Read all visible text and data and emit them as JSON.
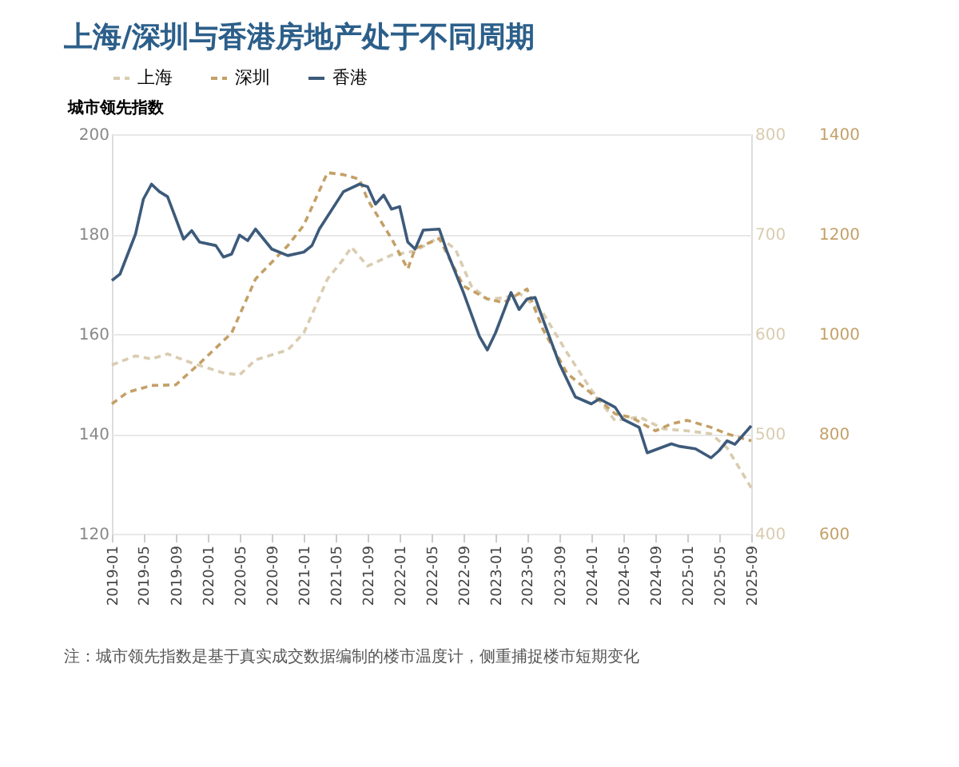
{
  "chart_data": {
    "type": "line",
    "title": "上海/深圳与香港房地产处于不同周期",
    "ylabel": "城市领先指数",
    "annotations": [
      "注：城市领先指数是基于真实成交数据编制的楼市温度计，侧重捕捉楼市短期变化"
    ],
    "xlim": [
      "2019-01",
      "2025-09"
    ],
    "xticks": [
      "2019-01",
      "2019-05",
      "2019-09",
      "2020-01",
      "2020-05",
      "2020-09",
      "2021-01",
      "2021-05",
      "2021-09",
      "2022-01",
      "2022-05",
      "2022-09",
      "2023-01",
      "2023-05",
      "2023-09",
      "2024-01",
      "2024-05",
      "2024-09",
      "2025-01",
      "2025-05",
      "2025-09"
    ],
    "ylim": [
      120,
      200
    ],
    "yticks": [
      120,
      140,
      160,
      180,
      200
    ],
    "y2lim": [
      400,
      800
    ],
    "y2ticks": [
      400,
      500,
      600,
      700,
      800
    ],
    "y3lim": [
      600,
      1400
    ],
    "y3ticks": [
      600,
      800,
      1000,
      1200,
      1400
    ],
    "grid": "y",
    "legend": "top",
    "marker": "none",
    "series": [
      {
        "name": "上海",
        "color": "#d9ccb0",
        "axis": "y2",
        "line_style": "dashed",
        "x": [
          "2019-01",
          "2019-04",
          "2019-06",
          "2019-08",
          "2019-11",
          "2020-03",
          "2020-05",
          "2020-07",
          "2020-11",
          "2021-01",
          "2021-04",
          "2021-06",
          "2021-07",
          "2021-09",
          "2021-12",
          "2022-03",
          "2022-06",
          "2022-08",
          "2022-10",
          "2022-12",
          "2023-02",
          "2023-04",
          "2023-07",
          "2023-10",
          "2024-01",
          "2024-04",
          "2024-07",
          "2024-10",
          "2025-01",
          "2025-04",
          "2025-06",
          "2025-09"
        ],
        "values": [
          569,
          578,
          575,
          580,
          571,
          561,
          559,
          574,
          584,
          601,
          655,
          675,
          687,
          668,
          679,
          683,
          697,
          685,
          648,
          635,
          636,
          641,
          621,
          581,
          544,
          513,
          517,
          505,
          503,
          500,
          486,
          446
        ]
      },
      {
        "name": "深圳",
        "color": "#c4a067",
        "axis": "y3",
        "line_style": "dashed",
        "x": [
          "2019-01",
          "2019-03",
          "2019-06",
          "2019-09",
          "2019-12",
          "2020-04",
          "2020-07",
          "2020-11",
          "2021-01",
          "2021-04",
          "2021-06",
          "2021-08",
          "2021-09",
          "2021-12",
          "2022-02",
          "2022-03",
          "2022-06",
          "2022-09",
          "2022-12",
          "2023-02",
          "2023-05",
          "2023-07",
          "2023-10",
          "2024-01",
          "2024-04",
          "2024-06",
          "2024-09",
          "2024-11",
          "2025-01",
          "2025-04",
          "2025-06",
          "2025-09"
        ],
        "values": [
          860,
          883,
          897,
          898,
          941,
          1002,
          1110,
          1177,
          1218,
          1323,
          1319,
          1310,
          1269,
          1191,
          1130,
          1171,
          1191,
          1096,
          1070,
          1063,
          1090,
          1009,
          921,
          881,
          840,
          833,
          806,
          820,
          827,
          813,
          800,
          786
        ]
      },
      {
        "name": "香港",
        "color": "#3d5a7a",
        "axis": "y",
        "line_style": "solid",
        "x": [
          "2019-01",
          "2019-02",
          "2019-04",
          "2019-05",
          "2019-06",
          "2019-07",
          "2019-08",
          "2019-10",
          "2019-11",
          "2019-12",
          "2020-02",
          "2020-03",
          "2020-04",
          "2020-05",
          "2020-06",
          "2020-07",
          "2020-09",
          "2020-11",
          "2021-01",
          "2021-02",
          "2021-03",
          "2021-06",
          "2021-08",
          "2021-09",
          "2021-10",
          "2021-11",
          "2021-12",
          "2022-01",
          "2022-02",
          "2022-03",
          "2022-04",
          "2022-06",
          "2022-07",
          "2022-09",
          "2022-11",
          "2022-12",
          "2023-01",
          "2023-03",
          "2023-04",
          "2023-05",
          "2023-06",
          "2023-07",
          "2023-09",
          "2023-11",
          "2024-01",
          "2024-02",
          "2024-04",
          "2024-05",
          "2024-07",
          "2024-08",
          "2024-11",
          "2024-12",
          "2025-02",
          "2025-04",
          "2025-05",
          "2025-06",
          "2025-07",
          "2025-09"
        ],
        "values": [
          170.7,
          172,
          180,
          187,
          190,
          188.5,
          187.5,
          179,
          180.7,
          178.4,
          177.7,
          175.4,
          176,
          179.8,
          178.7,
          181,
          177,
          175.7,
          176.4,
          177.7,
          181,
          188.5,
          190,
          189.5,
          186,
          187.8,
          185,
          185.5,
          178.4,
          177,
          180.8,
          181,
          176.4,
          168.3,
          159.5,
          156.8,
          160.2,
          168.3,
          164.9,
          167,
          167.3,
          162.9,
          154.1,
          147.4,
          146,
          147,
          145.3,
          142.9,
          141.3,
          136.2,
          138,
          137.5,
          137,
          135.2,
          136.6,
          138.6,
          137.9,
          141.6
        ]
      }
    ]
  }
}
